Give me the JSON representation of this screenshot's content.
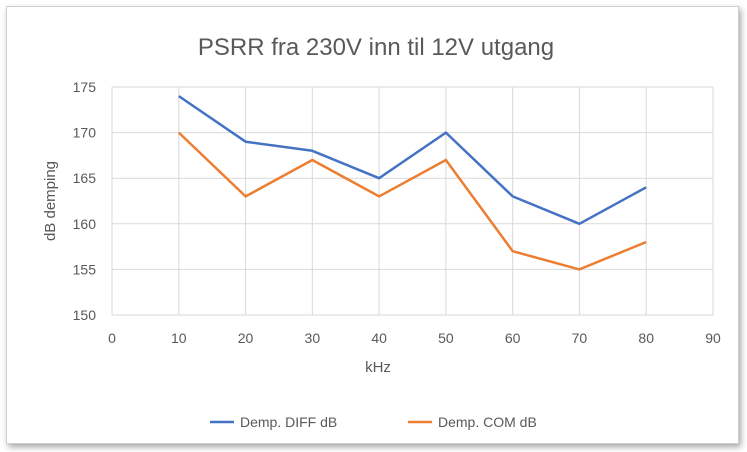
{
  "chart_data": {
    "type": "line",
    "title": "PSRR fra 230V inn til 12V utgang",
    "xlabel": "kHz",
    "ylabel": "dB demping",
    "xlim": [
      0,
      90
    ],
    "ylim": [
      150,
      175
    ],
    "x_ticks": [
      0,
      10,
      20,
      30,
      40,
      50,
      60,
      70,
      80,
      90
    ],
    "y_ticks": [
      150,
      155,
      160,
      165,
      170,
      175
    ],
    "grid": true,
    "legend_position": "bottom",
    "series": [
      {
        "name": "Demp. DIFF dB",
        "color": "#4472c4",
        "x": [
          10,
          20,
          30,
          40,
          50,
          60,
          70,
          80
        ],
        "values": [
          174,
          169,
          168,
          165,
          170,
          163,
          160,
          164
        ]
      },
      {
        "name": "Demp. COM dB",
        "color": "#ed7d31",
        "x": [
          10,
          20,
          30,
          40,
          50,
          60,
          70,
          80
        ],
        "values": [
          170,
          163,
          167,
          163,
          167,
          157,
          155,
          158
        ]
      }
    ]
  }
}
